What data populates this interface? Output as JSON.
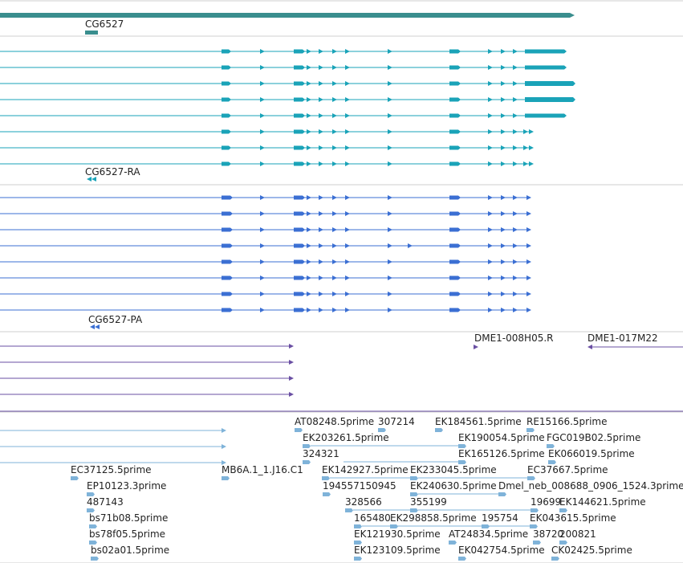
{
  "colors": {
    "gene": "#3a8e8e",
    "rna": "#1aa3b8",
    "protein": "#3b6fd3",
    "clone": "#6a4fa3",
    "est": "#7fb3d9",
    "divider": "#cfcfcf",
    "label": "#222222"
  },
  "gene_label": "CG6527",
  "rna_label": "CG6527-RA",
  "protein_label": "CG6527-PA",
  "clone_labels": [
    "DME1-008H05.R",
    "DME1-017M22"
  ],
  "est_labels": [
    "AT08248.5prime",
    "307214",
    "EK184561.5prime",
    "RE15166.5prime",
    "EK203261.5prime",
    "EK190054.5prime",
    "FGC019B02.5prime",
    "324321",
    "EK165126.5prime",
    "EK066019.5prime",
    "EC37125.5prime",
    "MB6A.1_1.J16.C1",
    "EK142927.5prime",
    "EK233045.5prime",
    "EC37667.5prime",
    "EP10123.3prime",
    "194557150945",
    "EK240630.5prime",
    "Dmel_neb_008688_0906_1524.3prime",
    "487143",
    "328566",
    "355199",
    "19699",
    "EK144621.5prime",
    "bs71b08.5prime",
    "165480",
    "EK298858.5prime",
    "195754",
    "EK043615.5prime",
    "bs78f05.5prime",
    "EK121930.5prime",
    "AT24834.5prime",
    "38720",
    "200821",
    "bs02a01.5prime",
    "EK123109.5prime",
    "EK042754.5prime",
    "CK02425.5prime"
  ]
}
